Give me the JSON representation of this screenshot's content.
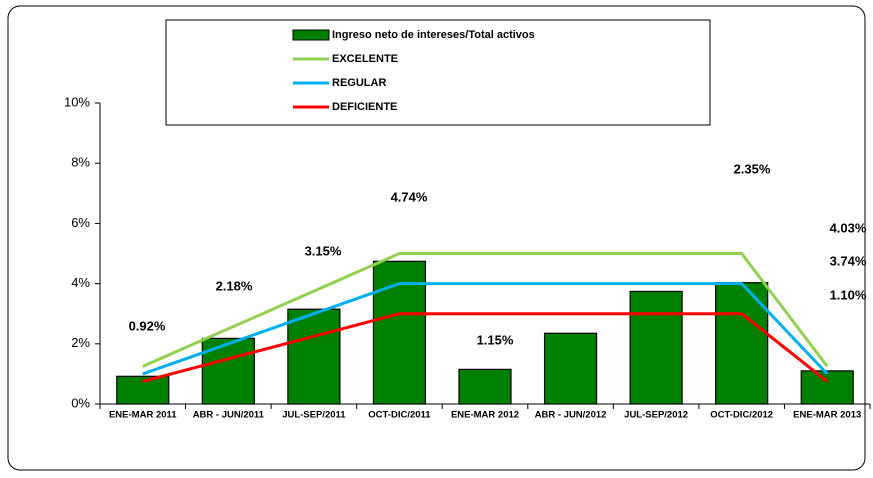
{
  "chart_data": {
    "type": "bar",
    "categories": [
      "ENE-MAR 2011",
      "ABR - JUN/2011",
      "JUL-SEP/2011",
      "OCT-DIC/2011",
      "ENE-MAR 2012",
      "ABR - JUN/2012",
      "JUL-SEP/2012",
      "OCT-DIC/2012",
      "ENE-MAR 2013"
    ],
    "series": [
      {
        "name": "Ingreso neto de intereses/Total activos",
        "type": "bar",
        "color": "#008000",
        "values": [
          0.92,
          2.18,
          3.15,
          4.74,
          1.15,
          2.35,
          3.74,
          4.03,
          1.1
        ],
        "value_labels": [
          "0.92%",
          "2.18%",
          "3.15%",
          "4.74%",
          "1.15%",
          "2.35%",
          "3.74%",
          "4.03%",
          "1.10%"
        ]
      },
      {
        "name": "EXCELENTE",
        "type": "line",
        "color": "#92d050",
        "values": [
          1.25,
          2.5,
          3.75,
          5,
          5,
          5,
          5,
          5,
          1.25
        ]
      },
      {
        "name": "REGULAR",
        "type": "line",
        "color": "#00b0f0",
        "values": [
          1,
          2,
          3,
          4,
          4,
          4,
          4,
          4,
          1
        ]
      },
      {
        "name": "DEFICIENTE",
        "type": "line",
        "color": "#ff0000",
        "values": [
          0.75,
          1.5,
          2.25,
          3,
          3,
          3,
          3,
          3,
          0.75
        ]
      }
    ],
    "ylim": [
      0,
      10
    ],
    "yticks": [
      {
        "value": 0,
        "label": "0%"
      },
      {
        "value": 2,
        "label": "2%"
      },
      {
        "value": 4,
        "label": "4%"
      },
      {
        "value": 6,
        "label": "6%"
      },
      {
        "value": 8,
        "label": "8%"
      },
      {
        "value": 10,
        "label": "10%"
      }
    ]
  }
}
